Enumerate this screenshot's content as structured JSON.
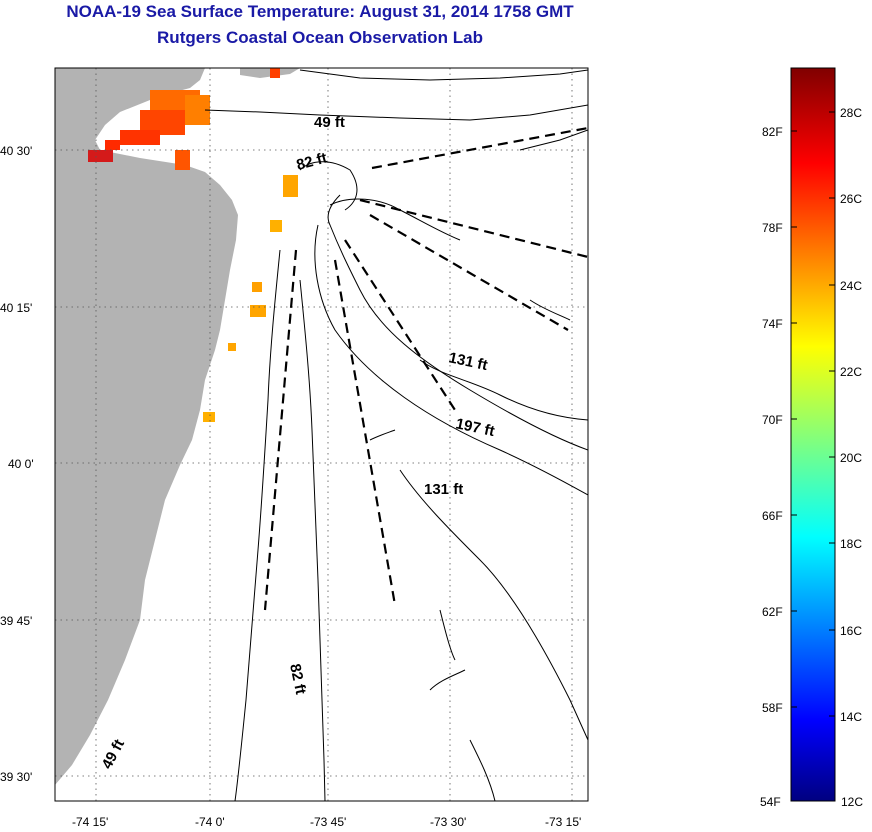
{
  "title": "NOAA-19 Sea Surface Temperature:  August 31, 2014 1758 GMT",
  "subtitle": "Rutgers Coastal Ocean Observation Lab",
  "lat_labels": [
    "40 30'",
    "40 15'",
    "40 0'",
    "39 45'",
    "39 30'"
  ],
  "lon_labels": [
    "-74 15'",
    "-74 0'",
    "-73 45'",
    "-73 30'",
    "-73 15'"
  ],
  "depth_labels": {
    "d49_top": "49 ft",
    "d82_top": "82 ft",
    "d131_a": "131 ft",
    "d197": "197 ft",
    "d131_b": "131 ft",
    "d82_bottom": "82 ft",
    "d49_bottom": "49 ft"
  },
  "colorbar": {
    "fahrenheit": [
      "82F",
      "78F",
      "74F",
      "70F",
      "66F",
      "62F",
      "58F",
      "54F"
    ],
    "celsius": [
      "28C",
      "26C",
      "24C",
      "22C",
      "20C",
      "18C",
      "16C",
      "14C",
      "12C"
    ]
  },
  "colors": {
    "title": "#1a1aa6",
    "land": "#b3b3b3"
  }
}
